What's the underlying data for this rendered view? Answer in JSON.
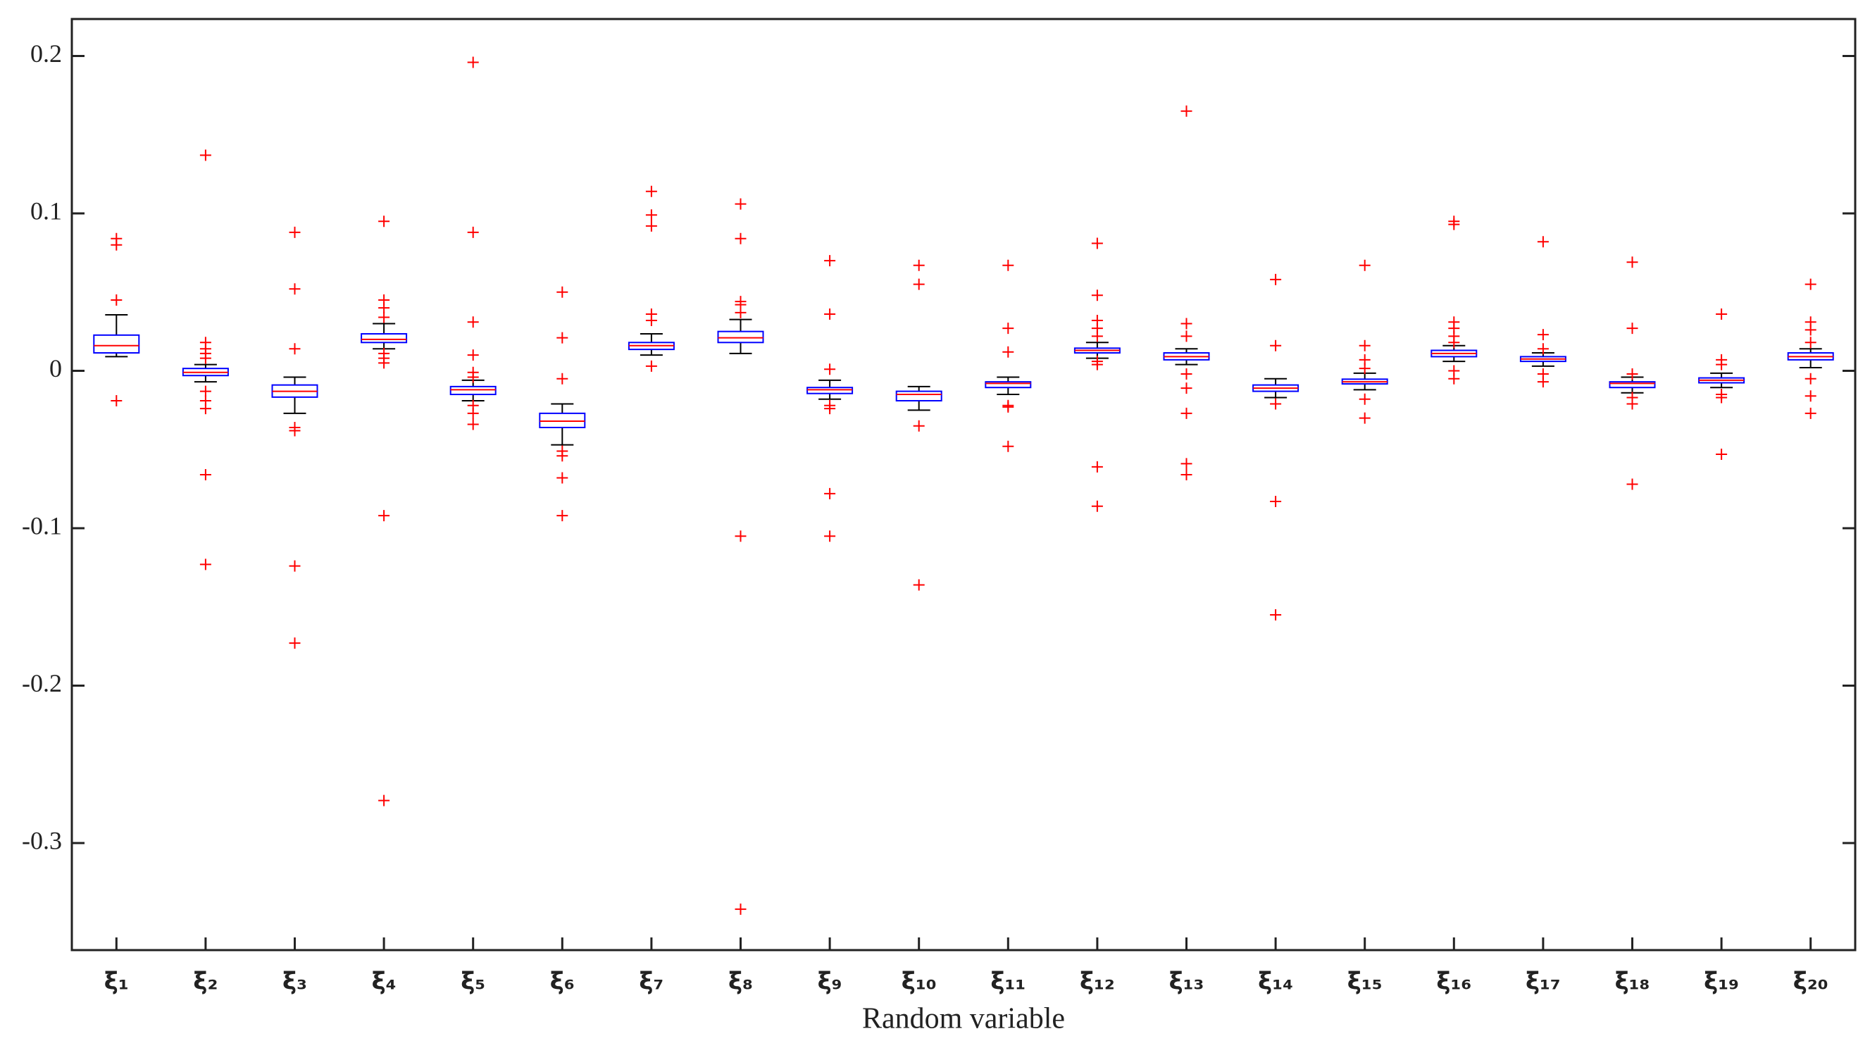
{
  "chart_data": {
    "type": "box",
    "x_label": "Random variable",
    "categories": [
      "ξ₁",
      "ξ₂",
      "ξ₃",
      "ξ₄",
      "ξ₅",
      "ξ₆",
      "ξ₇",
      "ξ₈",
      "ξ₉",
      "ξ₁₀",
      "ξ₁₁",
      "ξ₁₂",
      "ξ₁₃",
      "ξ₁₄",
      "ξ₁₅",
      "ξ₁₆",
      "ξ₁₇",
      "ξ₁₈",
      "ξ₁₉",
      "ξ₂₀"
    ],
    "box_color": "#0000ff",
    "median_color": "#ff0000",
    "whisker_color": "#000000",
    "flier_color": "#ff0000",
    "ylim": [
      -0.368,
      0.2235
    ],
    "yticks": [
      0.2,
      0.1,
      0,
      -0.1,
      -0.2,
      -0.3
    ],
    "boxes": [
      {
        "whislo": 0.009,
        "q1": 0.0114,
        "med": 0.016,
        "q3": 0.0227,
        "whishi": 0.0356,
        "fliers": [
          0.084,
          0.08,
          0.045,
          -0.019
        ]
      },
      {
        "whislo": -0.007,
        "q1": -0.003,
        "med": -0.001,
        "q3": 0.0015,
        "whishi": 0.004,
        "fliers": [
          0.137,
          0.018,
          0.014,
          0.011,
          0.008,
          -0.013,
          -0.019,
          -0.024,
          -0.066,
          -0.123
        ]
      },
      {
        "whislo": -0.027,
        "q1": -0.0167,
        "med": -0.013,
        "q3": -0.009,
        "whishi": -0.004,
        "fliers": [
          0.088,
          0.052,
          0.014,
          -0.036,
          -0.038,
          -0.124,
          -0.173
        ]
      },
      {
        "whislo": 0.014,
        "q1": 0.018,
        "med": 0.02,
        "q3": 0.0235,
        "whishi": 0.03,
        "fliers": [
          0.095,
          0.045,
          0.04,
          0.034,
          0.011,
          0.008,
          0.005,
          -0.092,
          -0.273
        ]
      },
      {
        "whislo": -0.019,
        "q1": -0.015,
        "med": -0.012,
        "q3": -0.01,
        "whishi": -0.006,
        "fliers": [
          0.196,
          0.088,
          0.031,
          0.01,
          -0.001,
          -0.004,
          -0.022,
          -0.027,
          -0.034
        ]
      },
      {
        "whislo": -0.047,
        "q1": -0.036,
        "med": -0.032,
        "q3": -0.027,
        "whishi": -0.021,
        "fliers": [
          0.05,
          0.021,
          -0.005,
          -0.051,
          -0.054,
          -0.068,
          -0.092
        ]
      },
      {
        "whislo": 0.01,
        "q1": 0.0136,
        "med": 0.016,
        "q3": 0.018,
        "whishi": 0.0235,
        "fliers": [
          0.114,
          0.099,
          0.092,
          0.036,
          0.032,
          0.003
        ]
      },
      {
        "whislo": 0.011,
        "q1": 0.018,
        "med": 0.021,
        "q3": 0.025,
        "whishi": 0.0326,
        "fliers": [
          0.106,
          0.084,
          0.044,
          0.042,
          0.037,
          -0.105,
          -0.342
        ]
      },
      {
        "whislo": -0.018,
        "q1": -0.0144,
        "med": -0.012,
        "q3": -0.0106,
        "whishi": -0.006,
        "fliers": [
          0.07,
          0.036,
          0.001,
          -0.022,
          -0.024,
          -0.078,
          -0.105
        ]
      },
      {
        "whislo": -0.025,
        "q1": -0.019,
        "med": -0.015,
        "q3": -0.013,
        "whishi": -0.01,
        "fliers": [
          0.067,
          0.055,
          -0.035,
          -0.136
        ]
      },
      {
        "whislo": -0.015,
        "q1": -0.0106,
        "med": -0.008,
        "q3": -0.007,
        "whishi": -0.004,
        "fliers": [
          0.067,
          0.027,
          0.012,
          -0.022,
          -0.023,
          -0.048
        ]
      },
      {
        "whislo": 0.008,
        "q1": 0.0114,
        "med": 0.013,
        "q3": 0.0144,
        "whishi": 0.018,
        "fliers": [
          0.081,
          0.048,
          0.032,
          0.027,
          0.022,
          0.006,
          0.004,
          -0.061,
          -0.086
        ]
      },
      {
        "whislo": 0.004,
        "q1": 0.007,
        "med": 0.009,
        "q3": 0.0114,
        "whishi": 0.014,
        "fliers": [
          0.165,
          0.03,
          0.022,
          -0.002,
          -0.011,
          -0.027,
          -0.059,
          -0.066
        ]
      },
      {
        "whislo": -0.017,
        "q1": -0.013,
        "med": -0.011,
        "q3": -0.009,
        "whishi": -0.005,
        "fliers": [
          0.058,
          0.016,
          -0.021,
          -0.083,
          -0.155
        ]
      },
      {
        "whislo": -0.012,
        "q1": -0.0083,
        "med": -0.007,
        "q3": -0.0053,
        "whishi": -0.0015,
        "fliers": [
          0.067,
          0.016,
          0.007,
          0.0015,
          -0.018,
          -0.03
        ]
      },
      {
        "whislo": 0.006,
        "q1": 0.009,
        "med": 0.011,
        "q3": 0.013,
        "whishi": 0.016,
        "fliers": [
          0.095,
          0.093,
          0.031,
          0.027,
          0.022,
          0.018,
          0,
          -0.005
        ]
      },
      {
        "whislo": 0.003,
        "q1": 0.006,
        "med": 0.0075,
        "q3": 0.009,
        "whishi": 0.0114,
        "fliers": [
          0.082,
          0.023,
          0.014,
          -0.002,
          -0.007
        ]
      },
      {
        "whislo": -0.014,
        "q1": -0.0106,
        "med": -0.008,
        "q3": -0.007,
        "whishi": -0.004,
        "fliers": [
          0.069,
          0.027,
          -0.002,
          -0.017,
          -0.021,
          -0.072
        ]
      },
      {
        "whislo": -0.0106,
        "q1": -0.0076,
        "med": -0.006,
        "q3": -0.0045,
        "whishi": -0.0015,
        "fliers": [
          0.036,
          0.007,
          0.004,
          -0.015,
          -0.017,
          -0.053
        ]
      },
      {
        "whislo": 0.002,
        "q1": 0.007,
        "med": 0.009,
        "q3": 0.0114,
        "whishi": 0.014,
        "fliers": [
          0.055,
          0.031,
          0.026,
          0.018,
          -0.005,
          -0.016,
          -0.027
        ]
      }
    ]
  }
}
